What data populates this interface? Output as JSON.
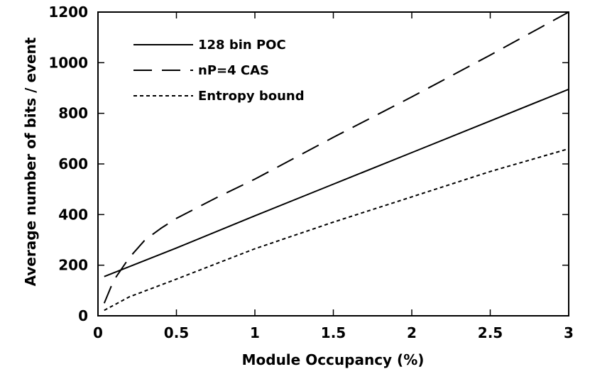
{
  "chart_data": {
    "type": "line",
    "title": "",
    "xlabel": "Module Occupancy (%)",
    "ylabel": "Average number of bits / event",
    "xlim": [
      0,
      3
    ],
    "ylim": [
      0,
      1200
    ],
    "x_ticks": [
      0,
      0.5,
      1,
      1.5,
      2,
      2.5,
      3
    ],
    "x_tick_labels": [
      "0",
      "0.5",
      "1",
      "1.5",
      "2",
      "2.5",
      "3"
    ],
    "y_ticks": [
      0,
      200,
      400,
      600,
      800,
      1000,
      1200
    ],
    "y_tick_labels": [
      "0",
      "200",
      "400",
      "600",
      "800",
      "1000",
      "1200"
    ],
    "grid": false,
    "legend_position": "top-left",
    "series": [
      {
        "name": "128 bin POC",
        "style": "solid",
        "x": [
          0.04,
          0.5,
          1,
          1.5,
          2,
          2.5,
          3
        ],
        "y": [
          155,
          268,
          395,
          520,
          645,
          770,
          895
        ]
      },
      {
        "name": "nP=4 CAS",
        "style": "dashed",
        "x": [
          0.04,
          0.1,
          0.2,
          0.3,
          0.4,
          0.5,
          0.75,
          1,
          1.5,
          2,
          2.5,
          3
        ],
        "y": [
          50,
          140,
          230,
          300,
          345,
          385,
          465,
          540,
          705,
          865,
          1030,
          1200
        ]
      },
      {
        "name": "Entropy bound",
        "style": "dotted",
        "x": [
          0.04,
          0.2,
          0.5,
          1,
          1.5,
          2,
          2.5,
          3
        ],
        "y": [
          22,
          75,
          145,
          265,
          370,
          470,
          570,
          660
        ]
      }
    ]
  }
}
